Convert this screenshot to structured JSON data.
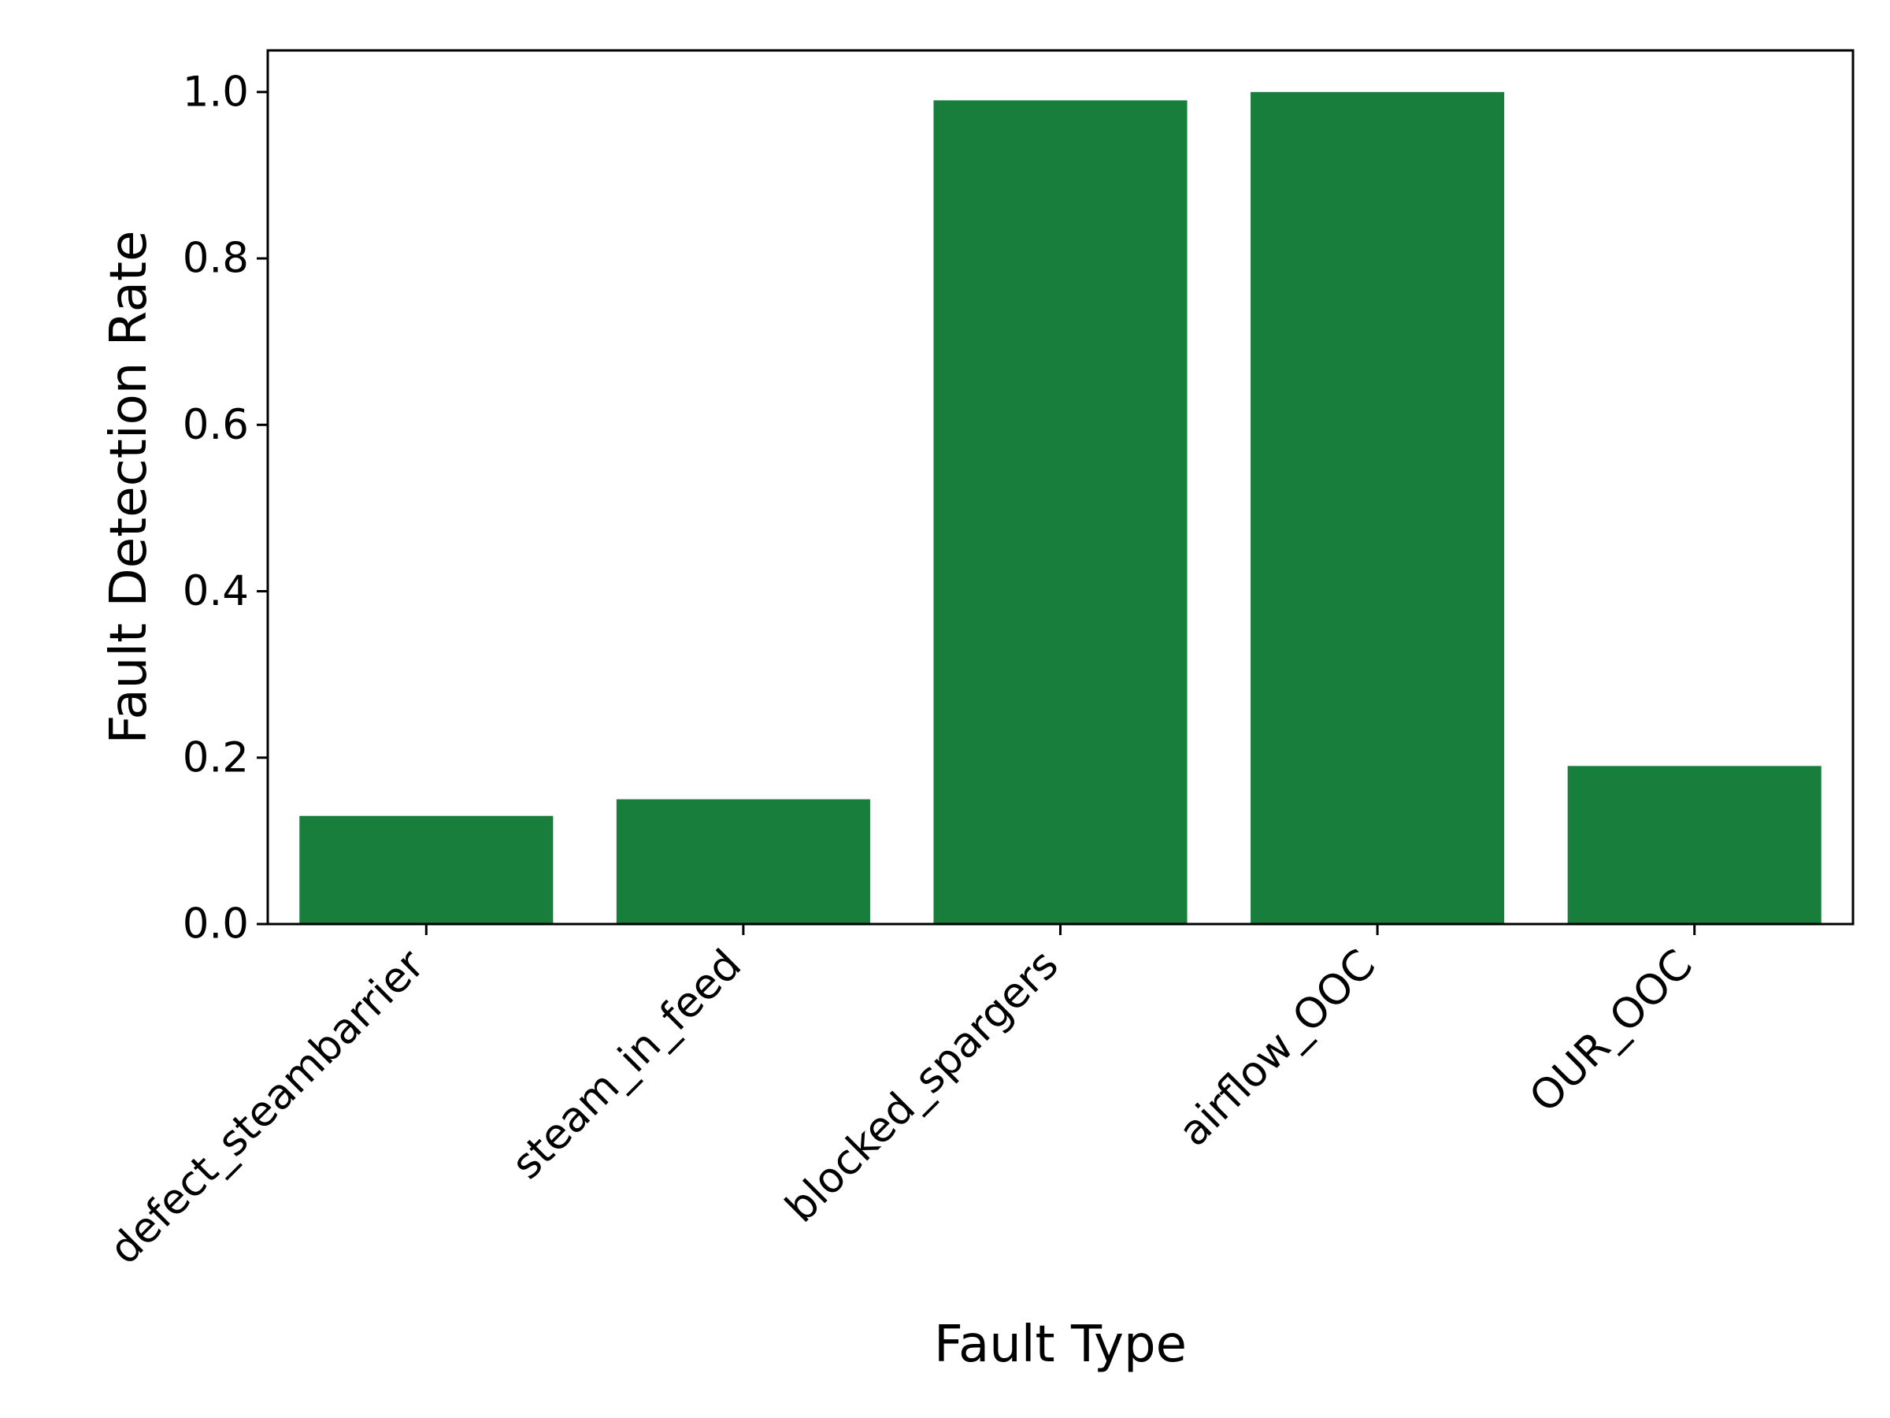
{
  "chart_data": {
    "type": "bar",
    "title": "",
    "xlabel": "Fault Type",
    "ylabel": "Fault Detection Rate",
    "categories": [
      "defect_steambarrier",
      "steam_in_feed",
      "blocked_spargers",
      "airflow_OOC",
      "OUR_OOC"
    ],
    "values": [
      0.13,
      0.15,
      0.99,
      1.0,
      0.19
    ],
    "ylim": [
      0,
      1.05
    ],
    "yticks": [
      "0.0",
      "0.2",
      "0.4",
      "0.6",
      "0.8",
      "1.0"
    ],
    "grid": false,
    "legend": "none",
    "bar_color": "#177e3b"
  }
}
